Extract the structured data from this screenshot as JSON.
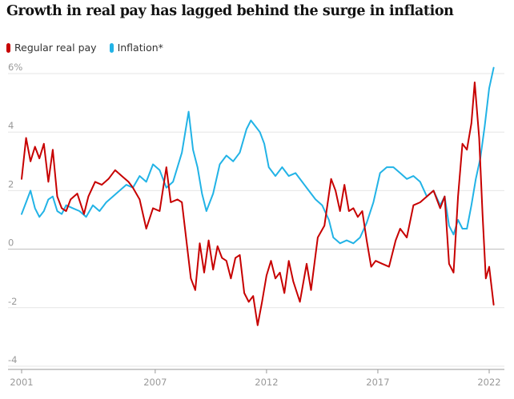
{
  "title": "Growth in real pay has lagged behind the surge in inflation",
  "legend": {
    "items": [
      {
        "label": "Regular real pay",
        "color": "#c70000"
      },
      {
        "label": "Inflation*",
        "color": "#22b3e6"
      }
    ]
  },
  "chart_data": {
    "type": "line",
    "title": "Growth in real pay has lagged behind the surge in inflation",
    "xlabel": "",
    "ylabel": "",
    "xlim": [
      2001,
      2022.2
    ],
    "ylim": [
      -4,
      6.2
    ],
    "x_ticks": [
      "2001",
      "2007",
      "2012",
      "2017",
      "2022"
    ],
    "y_ticks": [
      "6%",
      "4",
      "2",
      "0",
      "-2",
      "-4"
    ],
    "y_tick_values": [
      6,
      4,
      2,
      0,
      -2,
      -4
    ],
    "x_tick_values": [
      2001,
      2007,
      2012,
      2017,
      2022
    ],
    "grid": true,
    "series": [
      {
        "name": "Regular real pay",
        "color": "#c70000",
        "points": [
          [
            2001.0,
            2.4
          ],
          [
            2001.2,
            3.8
          ],
          [
            2001.4,
            3.0
          ],
          [
            2001.6,
            3.5
          ],
          [
            2001.8,
            3.1
          ],
          [
            2002.0,
            3.6
          ],
          [
            2002.2,
            2.3
          ],
          [
            2002.4,
            3.4
          ],
          [
            2002.6,
            1.8
          ],
          [
            2002.8,
            1.4
          ],
          [
            2003.0,
            1.3
          ],
          [
            2003.2,
            1.7
          ],
          [
            2003.5,
            1.9
          ],
          [
            2003.8,
            1.2
          ],
          [
            2004.0,
            1.8
          ],
          [
            2004.3,
            2.3
          ],
          [
            2004.6,
            2.2
          ],
          [
            2004.9,
            2.4
          ],
          [
            2005.2,
            2.7
          ],
          [
            2005.5,
            2.5
          ],
          [
            2005.8,
            2.3
          ],
          [
            2006.0,
            2.1
          ],
          [
            2006.3,
            1.7
          ],
          [
            2006.6,
            0.7
          ],
          [
            2006.9,
            1.4
          ],
          [
            2007.2,
            1.3
          ],
          [
            2007.5,
            2.8
          ],
          [
            2007.7,
            1.6
          ],
          [
            2008.0,
            1.7
          ],
          [
            2008.2,
            1.6
          ],
          [
            2008.4,
            0.3
          ],
          [
            2008.6,
            -1.0
          ],
          [
            2008.8,
            -1.4
          ],
          [
            2009.0,
            0.2
          ],
          [
            2009.2,
            -0.8
          ],
          [
            2009.4,
            0.3
          ],
          [
            2009.6,
            -0.7
          ],
          [
            2009.8,
            0.1
          ],
          [
            2010.0,
            -0.3
          ],
          [
            2010.2,
            -0.4
          ],
          [
            2010.4,
            -1.0
          ],
          [
            2010.6,
            -0.3
          ],
          [
            2010.8,
            -0.2
          ],
          [
            2011.0,
            -1.5
          ],
          [
            2011.2,
            -1.8
          ],
          [
            2011.4,
            -1.6
          ],
          [
            2011.6,
            -2.6
          ],
          [
            2011.8,
            -1.8
          ],
          [
            2012.0,
            -0.9
          ],
          [
            2012.2,
            -0.4
          ],
          [
            2012.4,
            -1.0
          ],
          [
            2012.6,
            -0.8
          ],
          [
            2012.8,
            -1.5
          ],
          [
            2013.0,
            -0.4
          ],
          [
            2013.2,
            -1.1
          ],
          [
            2013.5,
            -1.8
          ],
          [
            2013.8,
            -0.5
          ],
          [
            2014.0,
            -1.4
          ],
          [
            2014.3,
            0.4
          ],
          [
            2014.6,
            0.8
          ],
          [
            2014.9,
            2.4
          ],
          [
            2015.1,
            2.0
          ],
          [
            2015.3,
            1.3
          ],
          [
            2015.5,
            2.2
          ],
          [
            2015.7,
            1.3
          ],
          [
            2015.9,
            1.4
          ],
          [
            2016.1,
            1.1
          ],
          [
            2016.3,
            1.3
          ],
          [
            2016.5,
            0.3
          ],
          [
            2016.7,
            -0.6
          ],
          [
            2016.9,
            -0.4
          ],
          [
            2017.2,
            -0.5
          ],
          [
            2017.5,
            -0.6
          ],
          [
            2017.8,
            0.3
          ],
          [
            2018.0,
            0.7
          ],
          [
            2018.3,
            0.4
          ],
          [
            2018.6,
            1.5
          ],
          [
            2018.9,
            1.6
          ],
          [
            2019.2,
            1.8
          ],
          [
            2019.5,
            2.0
          ],
          [
            2019.8,
            1.4
          ],
          [
            2020.0,
            1.8
          ],
          [
            2020.2,
            -0.5
          ],
          [
            2020.4,
            -0.8
          ],
          [
            2020.6,
            1.8
          ],
          [
            2020.8,
            3.6
          ],
          [
            2021.0,
            3.4
          ],
          [
            2021.2,
            4.3
          ],
          [
            2021.35,
            5.7
          ],
          [
            2021.55,
            3.8
          ],
          [
            2021.7,
            1.2
          ],
          [
            2021.85,
            -1.0
          ],
          [
            2022.0,
            -0.6
          ],
          [
            2022.2,
            -1.9
          ]
        ]
      },
      {
        "name": "Inflation*",
        "color": "#22b3e6",
        "points": [
          [
            2001.0,
            1.2
          ],
          [
            2001.2,
            1.6
          ],
          [
            2001.4,
            2.0
          ],
          [
            2001.6,
            1.4
          ],
          [
            2001.8,
            1.1
          ],
          [
            2002.0,
            1.3
          ],
          [
            2002.2,
            1.7
          ],
          [
            2002.4,
            1.8
          ],
          [
            2002.6,
            1.3
          ],
          [
            2002.8,
            1.2
          ],
          [
            2003.0,
            1.5
          ],
          [
            2003.3,
            1.4
          ],
          [
            2003.6,
            1.3
          ],
          [
            2003.9,
            1.1
          ],
          [
            2004.2,
            1.5
          ],
          [
            2004.5,
            1.3
          ],
          [
            2004.8,
            1.6
          ],
          [
            2005.1,
            1.8
          ],
          [
            2005.4,
            2.0
          ],
          [
            2005.7,
            2.2
          ],
          [
            2006.0,
            2.1
          ],
          [
            2006.3,
            2.5
          ],
          [
            2006.6,
            2.3
          ],
          [
            2006.9,
            2.9
          ],
          [
            2007.2,
            2.7
          ],
          [
            2007.5,
            2.1
          ],
          [
            2007.8,
            2.3
          ],
          [
            2008.2,
            3.3
          ],
          [
            2008.5,
            4.7
          ],
          [
            2008.7,
            3.4
          ],
          [
            2008.9,
            2.8
          ],
          [
            2009.1,
            1.9
          ],
          [
            2009.3,
            1.3
          ],
          [
            2009.6,
            1.9
          ],
          [
            2009.9,
            2.9
          ],
          [
            2010.2,
            3.2
          ],
          [
            2010.5,
            3.0
          ],
          [
            2010.8,
            3.3
          ],
          [
            2011.1,
            4.1
          ],
          [
            2011.3,
            4.4
          ],
          [
            2011.5,
            4.2
          ],
          [
            2011.7,
            4.0
          ],
          [
            2011.9,
            3.6
          ],
          [
            2012.1,
            2.8
          ],
          [
            2012.4,
            2.5
          ],
          [
            2012.7,
            2.8
          ],
          [
            2013.0,
            2.5
          ],
          [
            2013.3,
            2.6
          ],
          [
            2013.6,
            2.3
          ],
          [
            2013.9,
            2.0
          ],
          [
            2014.2,
            1.7
          ],
          [
            2014.5,
            1.5
          ],
          [
            2014.8,
            1.0
          ],
          [
            2015.0,
            0.4
          ],
          [
            2015.3,
            0.2
          ],
          [
            2015.6,
            0.3
          ],
          [
            2015.9,
            0.2
          ],
          [
            2016.2,
            0.4
          ],
          [
            2016.5,
            0.9
          ],
          [
            2016.8,
            1.6
          ],
          [
            2017.1,
            2.6
          ],
          [
            2017.4,
            2.8
          ],
          [
            2017.7,
            2.8
          ],
          [
            2018.0,
            2.6
          ],
          [
            2018.3,
            2.4
          ],
          [
            2018.6,
            2.5
          ],
          [
            2018.9,
            2.3
          ],
          [
            2019.2,
            1.8
          ],
          [
            2019.5,
            2.0
          ],
          [
            2019.8,
            1.5
          ],
          [
            2020.0,
            1.8
          ],
          [
            2020.2,
            0.8
          ],
          [
            2020.4,
            0.5
          ],
          [
            2020.6,
            1.0
          ],
          [
            2020.8,
            0.7
          ],
          [
            2021.0,
            0.7
          ],
          [
            2021.2,
            1.5
          ],
          [
            2021.4,
            2.4
          ],
          [
            2021.6,
            3.1
          ],
          [
            2021.8,
            4.2
          ],
          [
            2022.0,
            5.5
          ],
          [
            2022.2,
            6.2
          ]
        ]
      }
    ]
  }
}
